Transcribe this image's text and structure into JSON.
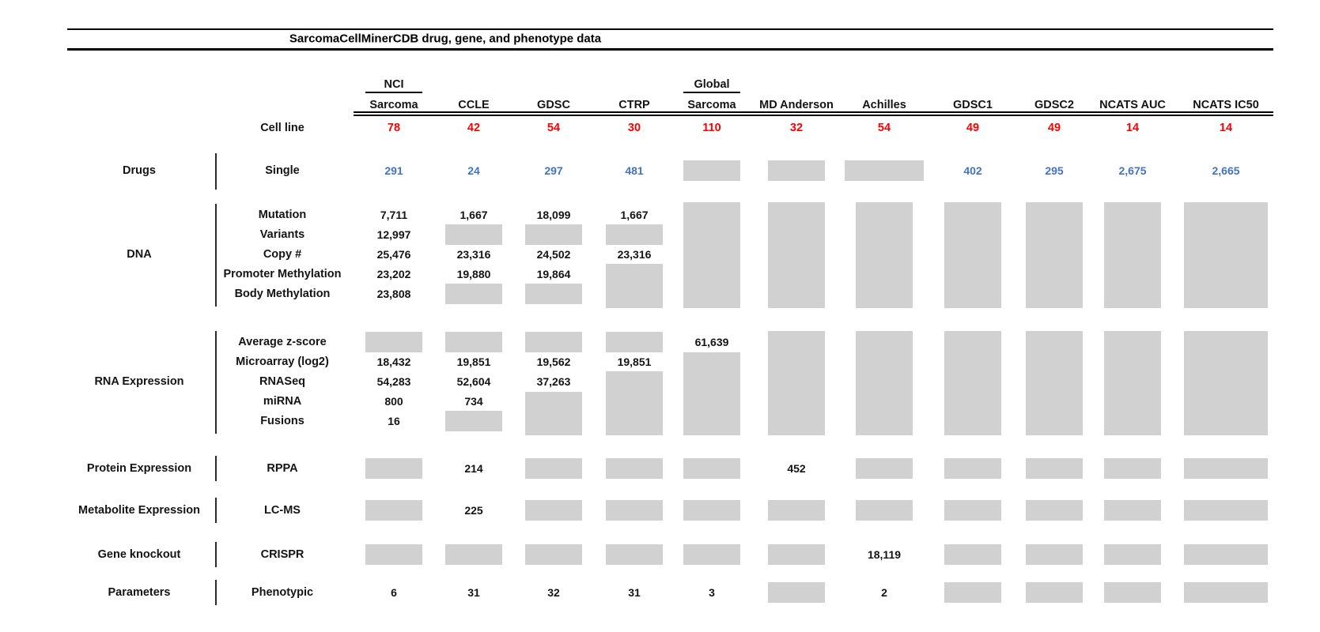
{
  "colors": {
    "count_red": "#fb0000",
    "drug_blue": "#4472c4",
    "missing_gray": "#d2d1d1"
  },
  "chart_data": {
    "type": "table",
    "title": "SarcomaCellMinerCDB drug, gene, and phenotype data",
    "cell_line_label": "Cell line",
    "columns": [
      {
        "top": "NCI",
        "name": "Sarcoma",
        "count": "78"
      },
      {
        "name": "CCLE",
        "count": "42"
      },
      {
        "name": "GDSC",
        "count": "54"
      },
      {
        "name": "CTRP",
        "count": "30"
      },
      {
        "top": "Global",
        "name": "Sarcoma",
        "count": "110"
      },
      {
        "name": "MD Anderson",
        "count": "32"
      },
      {
        "name": "Achilles",
        "count": "54"
      },
      {
        "name": "GDSC1",
        "count": "49"
      },
      {
        "name": "GDSC2",
        "count": "49"
      },
      {
        "name": "NCATS AUC",
        "count": "14"
      },
      {
        "name": "NCATS IC50",
        "count": "14"
      }
    ],
    "sections": [
      {
        "category": "Drugs",
        "rows": [
          {
            "label": "Single",
            "values": [
              "291",
              "24",
              "297",
              "481",
              null,
              null,
              null,
              "402",
              "295",
              "2,675",
              "2,665"
            ]
          }
        ]
      },
      {
        "category": "DNA",
        "rows": [
          {
            "label": "Mutation",
            "values": [
              "7,711",
              "1,667",
              "18,099",
              "1,667",
              null,
              null,
              null,
              null,
              null,
              null,
              null
            ]
          },
          {
            "label": "Variants",
            "values": [
              "12,997",
              null,
              null,
              null,
              null,
              null,
              null,
              null,
              null,
              null,
              null
            ]
          },
          {
            "label": "Copy #",
            "values": [
              "25,476",
              "23,316",
              "24,502",
              "23,316",
              null,
              null,
              null,
              null,
              null,
              null,
              null
            ]
          },
          {
            "label": "Promoter Methylation",
            "values": [
              "23,202",
              "19,880",
              "19,864",
              null,
              null,
              null,
              null,
              null,
              null,
              null,
              null
            ]
          },
          {
            "label": "Body Methylation",
            "values": [
              "23,808",
              null,
              null,
              null,
              null,
              null,
              null,
              null,
              null,
              null,
              null
            ]
          }
        ]
      },
      {
        "category": "RNA Expression",
        "rows": [
          {
            "label": "Average z-score",
            "values": [
              null,
              null,
              null,
              null,
              "61,639",
              null,
              null,
              null,
              null,
              null,
              null
            ]
          },
          {
            "label": "Microarray (log2)",
            "values": [
              "18,432",
              "19,851",
              "19,562",
              "19,851",
              null,
              null,
              null,
              null,
              null,
              null,
              null
            ]
          },
          {
            "label": "RNASeq",
            "values": [
              "54,283",
              "52,604",
              "37,263",
              null,
              null,
              null,
              null,
              null,
              null,
              null,
              null
            ]
          },
          {
            "label": "miRNA",
            "values": [
              "800",
              "734",
              null,
              null,
              null,
              null,
              null,
              null,
              null,
              null,
              null
            ]
          },
          {
            "label": "Fusions",
            "values": [
              "16",
              null,
              null,
              null,
              null,
              null,
              null,
              null,
              null,
              null,
              null
            ]
          }
        ]
      },
      {
        "category": "Protein Expression",
        "rows": [
          {
            "label": "RPPA",
            "values": [
              null,
              "214",
              null,
              null,
              null,
              "452",
              null,
              null,
              null,
              null,
              null
            ]
          }
        ]
      },
      {
        "category": "Metabolite Expression",
        "rows": [
          {
            "label": "LC-MS",
            "values": [
              null,
              "225",
              null,
              null,
              null,
              null,
              null,
              null,
              null,
              null,
              null
            ]
          }
        ]
      },
      {
        "category": "Gene knockout",
        "rows": [
          {
            "label": "CRISPR",
            "values": [
              null,
              null,
              null,
              null,
              null,
              null,
              "18,119",
              null,
              null,
              null,
              null
            ]
          }
        ]
      },
      {
        "category": "Parameters",
        "rows": [
          {
            "label": "Phenotypic",
            "values": [
              "6",
              "31",
              "32",
              "31",
              "3",
              null,
              "2",
              null,
              null,
              null,
              null
            ]
          }
        ]
      }
    ]
  }
}
